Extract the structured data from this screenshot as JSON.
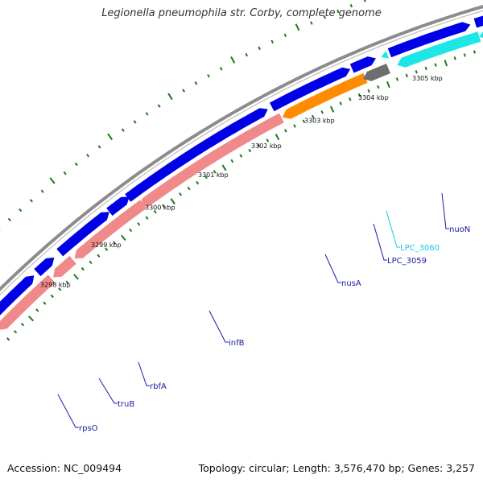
{
  "title": "Legionella pneumophila str. Corby, complete genome",
  "footer": {
    "accession": "Accession: NC_009494",
    "summary": "Topology: circular; Length: 3,576,470 bp; Genes: 3,257"
  },
  "colors": {
    "backbone": "#8c8c8c",
    "gene_forward": "#0000e6",
    "rna_pink": "#f08a8a",
    "gene_orange": "#ff8c00",
    "gene_cyan": "#1ee6e6",
    "gene_gray": "#6e6e6e",
    "tick": "#1a7a1a",
    "label": "#1a1aa0",
    "label_cyan": "#19c8e6"
  },
  "kbp_ticks": [
    "3298 kbp",
    "3299 kbp",
    "3300 kbp",
    "3301 kbp",
    "3302 kbp",
    "3303 kbp",
    "3304 kbp",
    "3305 kbp"
  ],
  "gene_labels": [
    {
      "name": "rpsO",
      "color": "label"
    },
    {
      "name": "truB",
      "color": "label"
    },
    {
      "name": "rbfA",
      "color": "label"
    },
    {
      "name": "infB",
      "color": "label"
    },
    {
      "name": "nusA",
      "color": "label"
    },
    {
      "name": "LPC_3059",
      "color": "label"
    },
    {
      "name": "LPC_3060",
      "color": "label_cyan"
    },
    {
      "name": "nuoN",
      "color": "label"
    }
  ]
}
